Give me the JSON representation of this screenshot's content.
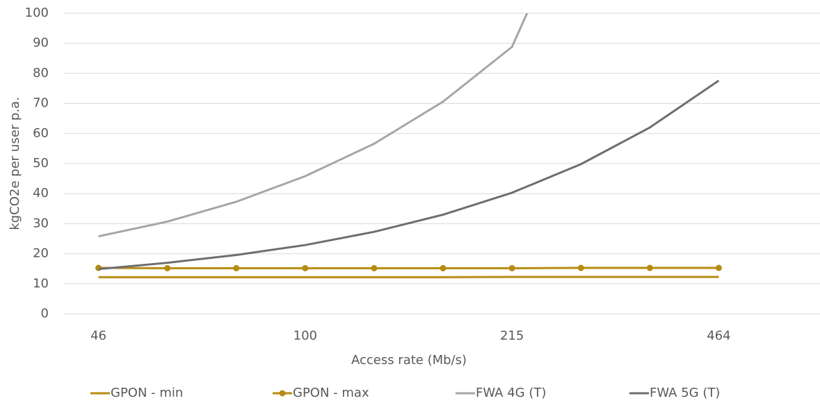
{
  "chart_data": {
    "type": "line",
    "x_label": "Access rate (Mb/s)",
    "y_label": "kgCO2e per user p.a.",
    "categories": [
      "46",
      null,
      null,
      "100",
      null,
      null,
      "215",
      null,
      null,
      "464"
    ],
    "ylim": [
      0,
      100
    ],
    "yticks": [
      0,
      10,
      20,
      30,
      40,
      50,
      60,
      70,
      80,
      90,
      100
    ],
    "grid": true,
    "legend": "bottom",
    "series": [
      {
        "name": "GPON - min",
        "color": "#b58b12",
        "marker": false,
        "values": [
          12.2,
          12.2,
          12.2,
          12.2,
          12.2,
          12.2,
          12.3,
          12.3,
          12.3,
          12.3
        ]
      },
      {
        "name": "GPON - max",
        "color": "#b58b12",
        "marker": true,
        "values": [
          15.3,
          15.2,
          15.2,
          15.2,
          15.2,
          15.2,
          15.2,
          15.3,
          15.3,
          15.3
        ]
      },
      {
        "name": "FWA 4G (T)",
        "color": "#a6a6a6",
        "marker": false,
        "values": [
          25.8,
          30.7,
          37.3,
          45.8,
          56.6,
          70.6,
          88.8,
          140,
          null,
          null
        ]
      },
      {
        "name": "FWA 5G (T)",
        "color": "#6e6e6e",
        "marker": false,
        "values": [
          14.9,
          17.0,
          19.6,
          22.9,
          27.3,
          33.0,
          40.3,
          49.8,
          62.0,
          77.6
        ]
      }
    ]
  }
}
